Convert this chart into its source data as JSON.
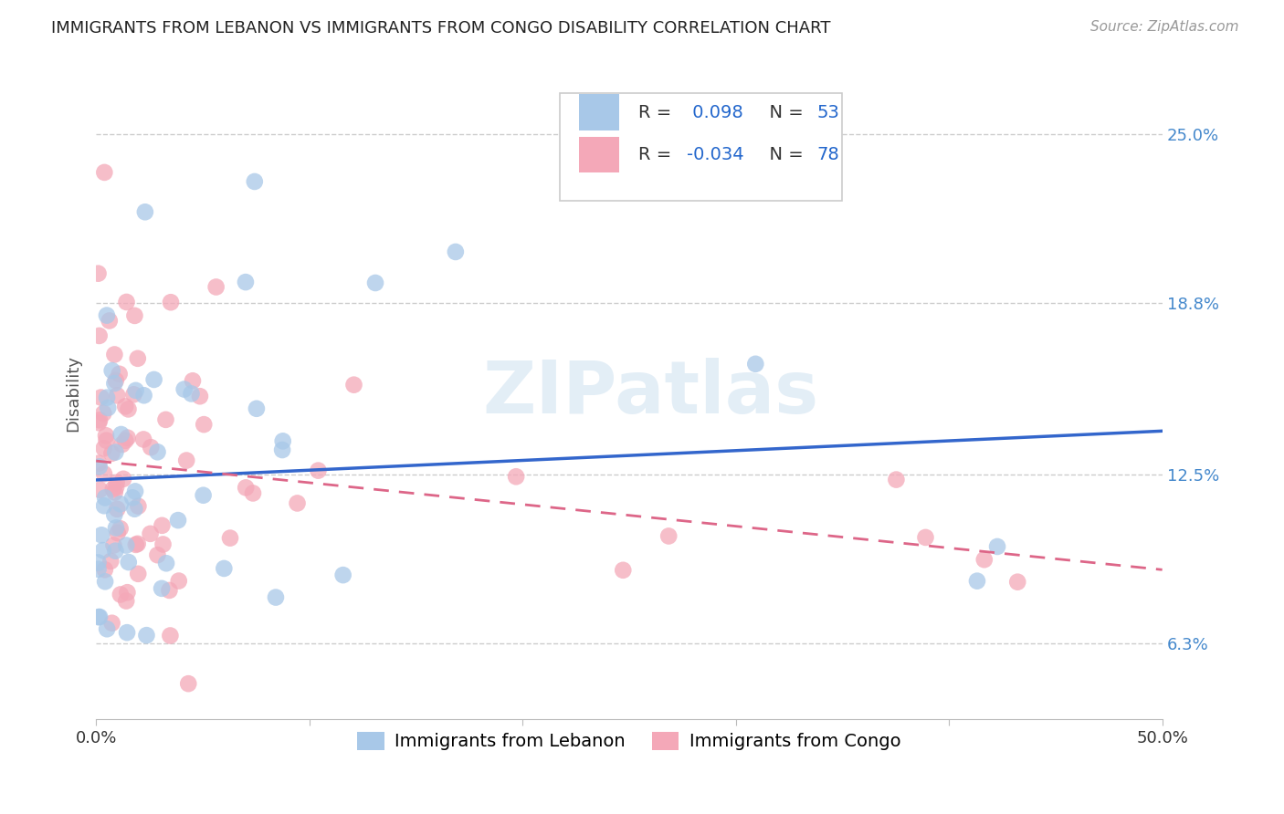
{
  "title": "IMMIGRANTS FROM LEBANON VS IMMIGRANTS FROM CONGO DISABILITY CORRELATION CHART",
  "source": "Source: ZipAtlas.com",
  "ylabel": "Disability",
  "xlim": [
    0.0,
    50.0
  ],
  "ylim": [
    3.5,
    27.5
  ],
  "yticks": [
    6.3,
    12.5,
    18.8,
    25.0
  ],
  "ytick_labels": [
    "6.3%",
    "12.5%",
    "18.8%",
    "25.0%"
  ],
  "xtick_vals": [
    0,
    10,
    20,
    30,
    40,
    50
  ],
  "grid_color": "#cccccc",
  "background_color": "#ffffff",
  "lebanon_color": "#a8c8e8",
  "congo_color": "#f4a8b8",
  "lebanon_line_color": "#3366cc",
  "congo_line_color": "#dd6688",
  "legend_R_lebanon": " 0.098",
  "legend_N_lebanon": "53",
  "legend_R_congo": "-0.034",
  "legend_N_congo": "78",
  "watermark": "ZIPatlas",
  "title_fontsize": 13,
  "axis_label_fontsize": 13,
  "tick_fontsize": 13,
  "legend_fontsize": 14
}
